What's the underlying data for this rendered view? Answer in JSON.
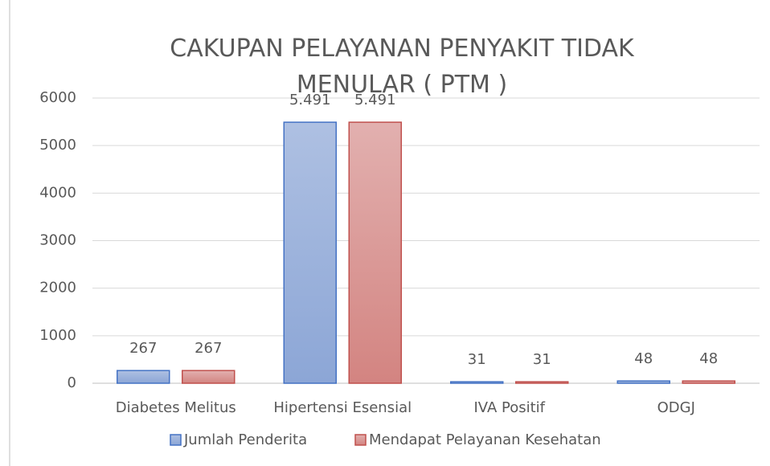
{
  "chart_data": {
    "type": "bar",
    "title": "CAKUPAN PELAYANAN PENYAKIT TIDAK MENULAR ( PTM )",
    "categories": [
      "Diabetes Melitus",
      "Hipertensi Esensial",
      "IVA Positif",
      "ODGJ"
    ],
    "series": [
      {
        "name": "Jumlah Penderita",
        "color": "#4472c4",
        "values": [
          267,
          5491,
          31,
          48
        ],
        "value_labels": [
          "267",
          "5.491",
          "31",
          "48"
        ]
      },
      {
        "name": "Mendapat Pelayanan Kesehatan",
        "color": "#c0504d",
        "values": [
          267,
          5491,
          31,
          48
        ],
        "value_labels": [
          "267",
          "5.491",
          "31",
          "48"
        ]
      }
    ],
    "ylim": [
      0,
      6000
    ],
    "yticks": [
      0,
      1000,
      2000,
      3000,
      4000,
      5000,
      6000
    ],
    "grid": true,
    "legend": "bottom"
  }
}
